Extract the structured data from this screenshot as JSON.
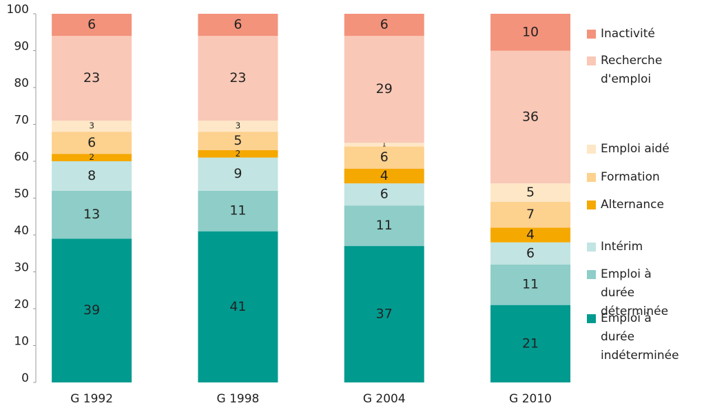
{
  "chart_data": {
    "type": "stacked_bar",
    "categories": [
      "G 1992",
      "G 1998",
      "G 2004",
      "G 2010"
    ],
    "series": [
      {
        "name": "Emploi à durée indéterminée",
        "color": "#009a8f",
        "values": [
          39,
          41,
          37,
          21
        ]
      },
      {
        "name": "Emploi à durée déterminée",
        "color": "#8ecdc8",
        "values": [
          13,
          11,
          11,
          11
        ]
      },
      {
        "name": "Intérim",
        "color": "#c2e4e2",
        "values": [
          8,
          9,
          6,
          6
        ]
      },
      {
        "name": "Alternance",
        "color": "#f5a800",
        "values": [
          2,
          2,
          4,
          4
        ]
      },
      {
        "name": "Formation",
        "color": "#fdd18e",
        "values": [
          6,
          5,
          6,
          7
        ]
      },
      {
        "name": "Emploi aidé",
        "color": "#fee7c6",
        "values": [
          3,
          3,
          1,
          5
        ]
      },
      {
        "name": "Recherche d'emploi",
        "color": "#f9c8b6",
        "values": [
          23,
          23,
          29,
          36
        ]
      },
      {
        "name": "Inactivité",
        "color": "#f3937b",
        "values": [
          6,
          6,
          6,
          10
        ]
      }
    ],
    "ylim": [
      0,
      100
    ],
    "yticks": [
      0,
      10,
      20,
      30,
      40,
      50,
      60,
      70,
      80,
      90,
      100
    ],
    "legend": "right"
  }
}
